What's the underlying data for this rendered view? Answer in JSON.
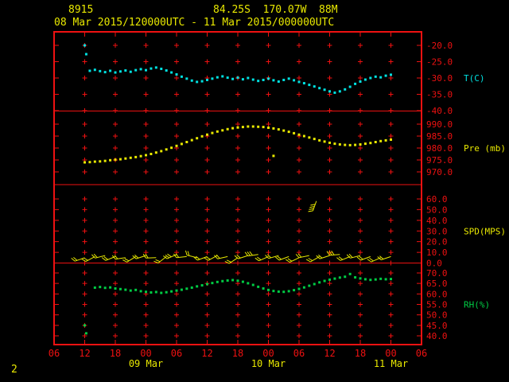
{
  "header": {
    "station_id": "8915",
    "location": "84.25S  170.07W  88M",
    "period": "08 Mar 2015/120000UTC - 11 Mar 2015/000000UTC",
    "page_number": "2"
  },
  "colors": {
    "background": "#000000",
    "axis_red": "#ee1111",
    "text_yellow": "#e8e800",
    "temp_cyan": "#00e0e0",
    "pressure_yellow": "#e8e800",
    "wind_yellow": "#e8e800",
    "rh_green": "#00cc44"
  },
  "chart_data": {
    "type": "scatter",
    "title": "AWS meteorogram, station 8915",
    "time_start": "08 Mar 2015 1200 UTC",
    "time_end": "11 Mar 2015 0000 UTC",
    "grid": "plus-marks at 6-hour columns",
    "legend_position": "right-edge panel labels",
    "x_axis": {
      "unit": "UTC hour",
      "tick_interval_hours": 6,
      "hour_tick_labels": [
        "06",
        "12",
        "18",
        "00",
        "06",
        "12",
        "18",
        "00",
        "06",
        "12",
        "18",
        "00",
        "06"
      ],
      "date_labels": [
        {
          "text": "09 Mar",
          "tick_index": 3
        },
        {
          "text": "10 Mar",
          "tick_index": 7
        },
        {
          "text": "11 Mar",
          "tick_index": 11
        }
      ]
    },
    "panels": [
      {
        "id": "temperature",
        "label": "T(C)",
        "unit": "C",
        "color": "#00e0e0",
        "tick_values": [
          -20,
          -25,
          -30,
          -35,
          -40
        ],
        "points": [
          [
            0,
            -20.0
          ],
          [
            0.3,
            -22.7
          ],
          [
            1,
            -27.8
          ],
          [
            2,
            -27.5
          ],
          [
            3,
            -27.9
          ],
          [
            4,
            -28.2
          ],
          [
            5,
            -27.8
          ],
          [
            6,
            -28.3
          ],
          [
            7,
            -28.0
          ],
          [
            8,
            -27.7
          ],
          [
            9,
            -28.1
          ],
          [
            10,
            -27.6
          ],
          [
            11,
            -27.3
          ],
          [
            12,
            -27.6
          ],
          [
            13,
            -27.1
          ],
          [
            14,
            -26.8
          ],
          [
            15,
            -27.2
          ],
          [
            16,
            -27.7
          ],
          [
            17,
            -28.3
          ],
          [
            18,
            -28.9
          ],
          [
            19,
            -29.6
          ],
          [
            20,
            -30.2
          ],
          [
            21,
            -30.8
          ],
          [
            22,
            -31.2
          ],
          [
            23,
            -31.0
          ],
          [
            24,
            -30.6
          ],
          [
            25,
            -30.2
          ],
          [
            26,
            -29.8
          ],
          [
            27,
            -29.5
          ],
          [
            28,
            -29.9
          ],
          [
            29,
            -30.3
          ],
          [
            30,
            -29.9
          ],
          [
            31,
            -30.4
          ],
          [
            32,
            -30.0
          ],
          [
            33,
            -30.5
          ],
          [
            34,
            -30.9
          ],
          [
            35,
            -30.6
          ],
          [
            36,
            -30.2
          ],
          [
            37,
            -30.7
          ],
          [
            38,
            -31.1
          ],
          [
            39,
            -30.6
          ],
          [
            40,
            -30.2
          ],
          [
            41,
            -30.7
          ],
          [
            42,
            -31.2
          ],
          [
            43,
            -31.6
          ],
          [
            44,
            -32.1
          ],
          [
            45,
            -32.6
          ],
          [
            46,
            -33.1
          ],
          [
            47,
            -33.6
          ],
          [
            48,
            -34.1
          ],
          [
            49,
            -34.5
          ],
          [
            50,
            -34.1
          ],
          [
            51,
            -33.5
          ],
          [
            52,
            -32.7
          ],
          [
            53,
            -31.8
          ],
          [
            54,
            -31.1
          ],
          [
            55,
            -30.5
          ],
          [
            56,
            -30.0
          ],
          [
            57,
            -29.6
          ],
          [
            58,
            -29.8
          ],
          [
            59,
            -29.3
          ],
          [
            60,
            -29.0
          ]
        ]
      },
      {
        "id": "pressure",
        "label": "Pre (mb)",
        "unit": "mb",
        "color": "#e8e800",
        "tick_values": [
          990,
          985,
          980,
          975,
          970
        ],
        "points": [
          [
            0,
            974.0
          ],
          [
            1,
            974.1
          ],
          [
            2,
            974.3
          ],
          [
            3,
            974.4
          ],
          [
            4,
            974.6
          ],
          [
            5,
            974.9
          ],
          [
            6,
            975.1
          ],
          [
            7,
            975.3
          ],
          [
            8,
            975.6
          ],
          [
            9,
            975.9
          ],
          [
            10,
            976.2
          ],
          [
            11,
            976.6
          ],
          [
            12,
            977.0
          ],
          [
            13,
            977.5
          ],
          [
            14,
            978.1
          ],
          [
            15,
            978.7
          ],
          [
            16,
            979.4
          ],
          [
            17,
            980.1
          ],
          [
            18,
            980.9
          ],
          [
            19,
            981.7
          ],
          [
            20,
            982.5
          ],
          [
            21,
            983.3
          ],
          [
            22,
            984.1
          ],
          [
            23,
            984.9
          ],
          [
            24,
            985.6
          ],
          [
            25,
            986.3
          ],
          [
            26,
            986.9
          ],
          [
            27,
            987.4
          ],
          [
            28,
            987.9
          ],
          [
            29,
            988.3
          ],
          [
            30,
            988.6
          ],
          [
            31,
            988.8
          ],
          [
            32,
            989.0
          ],
          [
            33,
            989.0
          ],
          [
            34,
            988.9
          ],
          [
            35,
            988.8
          ],
          [
            36,
            988.5
          ],
          [
            37,
            988.2
          ],
          [
            38,
            987.8
          ],
          [
            39,
            987.3
          ],
          [
            40,
            986.8
          ],
          [
            41,
            986.2
          ],
          [
            42,
            985.6
          ],
          [
            43,
            985.0
          ],
          [
            44,
            984.4
          ],
          [
            45,
            983.8
          ],
          [
            46,
            983.2
          ],
          [
            47,
            982.7
          ],
          [
            48,
            982.2
          ],
          [
            49,
            981.8
          ],
          [
            50,
            981.5
          ],
          [
            51,
            981.3
          ],
          [
            52,
            981.2
          ],
          [
            53,
            981.3
          ],
          [
            54,
            981.5
          ],
          [
            55,
            981.8
          ],
          [
            56,
            982.1
          ],
          [
            57,
            982.5
          ],
          [
            58,
            982.9
          ],
          [
            59,
            983.2
          ],
          [
            60,
            983.5
          ]
        ],
        "outlier_points": [
          [
            37,
            976.7
          ]
        ]
      },
      {
        "id": "wind_speed",
        "label": "SPD(MPS)",
        "unit": "MPS",
        "color": "#e8e800",
        "tick_values": [
          60,
          50,
          40,
          30,
          20,
          10,
          0
        ],
        "barbs": [
          [
            0,
            5,
            250
          ],
          [
            2,
            6,
            242
          ],
          [
            4,
            7,
            256
          ],
          [
            6,
            6,
            248
          ],
          [
            8,
            5,
            262
          ],
          [
            10,
            6,
            238
          ],
          [
            12,
            7,
            252
          ],
          [
            14,
            5,
            268
          ],
          [
            16,
            6,
            232
          ],
          [
            18,
            8,
            246
          ],
          [
            20,
            6,
            264
          ],
          [
            22,
            5,
            284
          ],
          [
            24,
            6,
            250
          ],
          [
            26,
            7,
            242
          ],
          [
            28,
            6,
            258
          ],
          [
            30,
            5,
            236
          ],
          [
            32,
            7,
            252
          ],
          [
            34,
            8,
            262
          ],
          [
            36,
            6,
            246
          ],
          [
            38,
            7,
            254
          ],
          [
            40,
            6,
            250
          ],
          [
            42,
            5,
            244
          ],
          [
            44,
            7,
            258
          ],
          [
            46,
            6,
            240
          ],
          [
            48,
            7,
            252
          ],
          [
            50,
            8,
            266
          ],
          [
            52,
            6,
            248
          ],
          [
            54,
            7,
            256
          ],
          [
            56,
            6,
            250
          ],
          [
            58,
            5,
            246
          ],
          [
            60,
            6,
            252
          ]
        ],
        "stray_barb": [
          45.4,
          58,
          200
        ]
      },
      {
        "id": "relative_humidity",
        "label": "RH(%)",
        "unit": "%",
        "color": "#00cc44",
        "tick_values": [
          70,
          65,
          60,
          55,
          50,
          45,
          40
        ],
        "points": [
          [
            0,
            45.0
          ],
          [
            0.3,
            41.2
          ],
          [
            2,
            63.0
          ],
          [
            3,
            63.3
          ],
          [
            4,
            62.9
          ],
          [
            5,
            63.1
          ],
          [
            6,
            62.6
          ],
          [
            7,
            62.3
          ],
          [
            8,
            62.0
          ],
          [
            9,
            61.6
          ],
          [
            10,
            61.9
          ],
          [
            11,
            61.3
          ],
          [
            12,
            61.0
          ],
          [
            13,
            60.7
          ],
          [
            14,
            60.9
          ],
          [
            15,
            60.5
          ],
          [
            16,
            60.8
          ],
          [
            17,
            61.2
          ],
          [
            18,
            61.6
          ],
          [
            19,
            62.0
          ],
          [
            20,
            62.5
          ],
          [
            21,
            63.0
          ],
          [
            22,
            63.6
          ],
          [
            23,
            64.1
          ],
          [
            24,
            64.7
          ],
          [
            25,
            65.2
          ],
          [
            26,
            65.7
          ],
          [
            27,
            66.1
          ],
          [
            28,
            66.4
          ],
          [
            29,
            66.6
          ],
          [
            30,
            66.3
          ],
          [
            31,
            65.8
          ],
          [
            32,
            65.1
          ],
          [
            33,
            64.3
          ],
          [
            34,
            63.4
          ],
          [
            35,
            62.6
          ],
          [
            36,
            61.9
          ],
          [
            37,
            61.4
          ],
          [
            38,
            61.1
          ],
          [
            39,
            61.0
          ],
          [
            40,
            61.3
          ],
          [
            41,
            61.8
          ],
          [
            42,
            62.4
          ],
          [
            43,
            63.1
          ],
          [
            44,
            63.9
          ],
          [
            45,
            64.7
          ],
          [
            46,
            65.5
          ],
          [
            47,
            66.2
          ],
          [
            48,
            66.8
          ],
          [
            49,
            67.3
          ],
          [
            50,
            67.8
          ],
          [
            51,
            68.2
          ],
          [
            52,
            69.5
          ],
          [
            53,
            67.9
          ],
          [
            54,
            67.4
          ],
          [
            55,
            67.0
          ],
          [
            56,
            66.7
          ],
          [
            57,
            66.9
          ],
          [
            58,
            67.2
          ],
          [
            59,
            67.0
          ],
          [
            60,
            67.1
          ]
        ]
      }
    ]
  }
}
